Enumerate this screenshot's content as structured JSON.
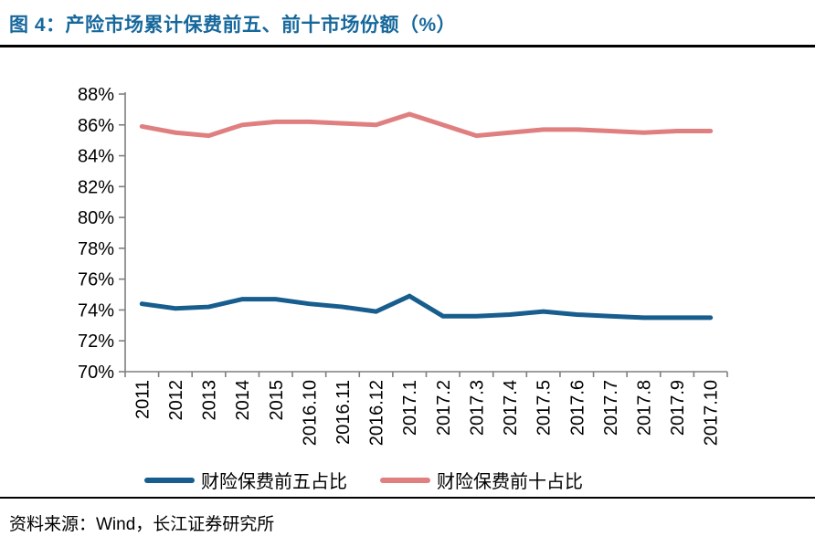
{
  "header": {
    "title": "图 4：产险市场累计保费前五、前十市场份额（%）"
  },
  "footer": {
    "source": "资料来源：Wind，长江证券研究所"
  },
  "chart_data": {
    "type": "line",
    "title": "产险市场累计保费前五、前十市场份额（%）",
    "xlabel": "",
    "ylabel": "",
    "categories": [
      "2011",
      "2012",
      "2013",
      "2014",
      "2015",
      "2016.10",
      "2016.11",
      "2016.12",
      "2017.1",
      "2017.2",
      "2017.3",
      "2017.4",
      "2017.5",
      "2017.6",
      "2017.7",
      "2017.8",
      "2017.9",
      "2017.10"
    ],
    "series": [
      {
        "name": "财险保费前五占比",
        "color": "#175d8e",
        "values": [
          74.4,
          74.1,
          74.2,
          74.7,
          74.7,
          74.4,
          74.2,
          73.9,
          74.9,
          73.6,
          73.6,
          73.7,
          73.9,
          73.7,
          73.6,
          73.5,
          73.5,
          73.5
        ]
      },
      {
        "name": "财险保费前十占比",
        "color": "#e07f80",
        "values": [
          85.9,
          85.5,
          85.3,
          86.0,
          86.2,
          86.2,
          86.1,
          86.0,
          86.7,
          86.0,
          85.3,
          85.5,
          85.7,
          85.7,
          85.6,
          85.5,
          85.6,
          85.6
        ]
      }
    ],
    "ylim": [
      70,
      88
    ],
    "y_step": 2,
    "y_suffix": "%",
    "grid": false,
    "legend_position": "bottom",
    "axis_color": "#7f7f7f",
    "tick_color": "#000000"
  }
}
